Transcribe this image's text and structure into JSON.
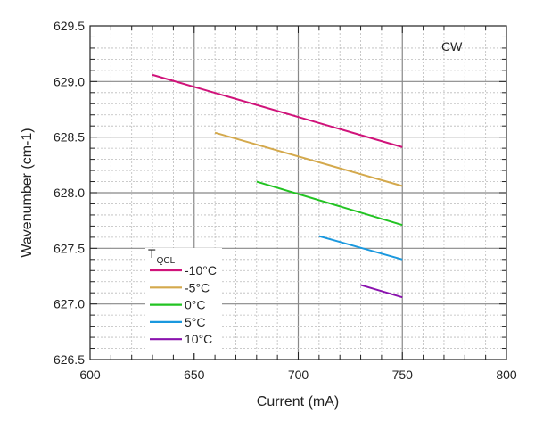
{
  "chart_data": {
    "type": "line",
    "title": "",
    "xlabel": "Current (mA)",
    "ylabel": "Wavenumber (cm-1)",
    "xlim": [
      600,
      800
    ],
    "ylim": [
      626.5,
      629.5
    ],
    "xticks": [
      600,
      650,
      700,
      750,
      800
    ],
    "yticks": [
      "626.5",
      "627.0",
      "627.5",
      "628.0",
      "628.5",
      "629.0",
      "629.5"
    ],
    "grid": true,
    "annotation": "CW",
    "legend": {
      "title_main": "T",
      "title_sub": "QCL",
      "placement": "bottom-left"
    },
    "series": [
      {
        "name": "-10°C",
        "color": "#d0137a",
        "x": [
          630,
          750
        ],
        "y": [
          629.06,
          628.41
        ]
      },
      {
        "name": "-5°C",
        "color": "#d4a94c",
        "x": [
          660,
          750
        ],
        "y": [
          628.54,
          628.06
        ]
      },
      {
        "name": "0°C",
        "color": "#22c322",
        "x": [
          680,
          750
        ],
        "y": [
          628.1,
          627.71
        ]
      },
      {
        "name": "5°C",
        "color": "#1a98de",
        "x": [
          710,
          750
        ],
        "y": [
          627.61,
          627.4
        ]
      },
      {
        "name": "10°C",
        "color": "#8a12ae",
        "x": [
          730,
          750
        ],
        "y": [
          627.17,
          627.06
        ]
      }
    ]
  }
}
